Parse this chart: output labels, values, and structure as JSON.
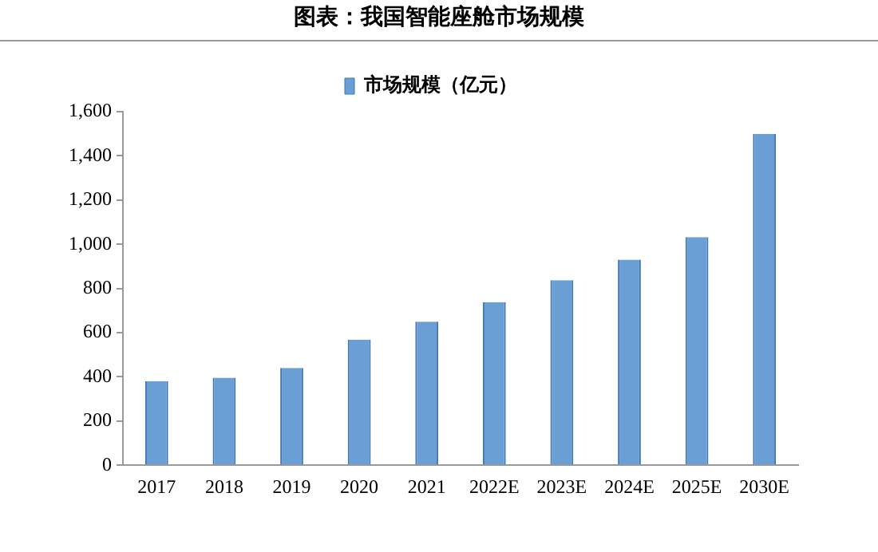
{
  "chart_data": {
    "type": "bar",
    "title": "图表：我国智能座舱市场规模",
    "categories": [
      "2017",
      "2018",
      "2019",
      "2020",
      "2021",
      "2022E",
      "2023E",
      "2024E",
      "2025E",
      "2030E"
    ],
    "series": [
      {
        "name": "市场规模（亿元）",
        "color": "#6a9fd6",
        "values": [
          380,
          396,
          440,
          568,
          650,
          738,
          837,
          930,
          1032,
          1500
        ]
      }
    ],
    "ylim": [
      0,
      1600
    ],
    "yticks": [
      0,
      200,
      400,
      600,
      800,
      {
        "value": 1000,
        "label": "1,000"
      },
      {
        "value": 1200,
        "label": "1,200"
      },
      {
        "value": 1400,
        "label": "1,400"
      },
      {
        "value": 1600,
        "label": "1,600"
      }
    ],
    "grid": false,
    "legend": "top"
  }
}
